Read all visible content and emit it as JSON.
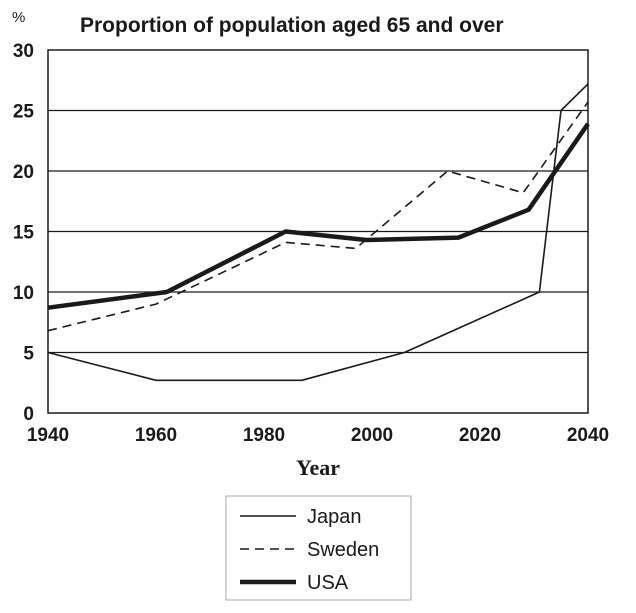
{
  "chart_data": {
    "type": "line",
    "title": "Proportion of population aged 65 and over",
    "ylabel": "%",
    "xlabel": "Year",
    "xlim": [
      1940,
      2040
    ],
    "ylim": [
      0,
      30
    ],
    "x_ticks": [
      "1940",
      "1960",
      "1980",
      "2000",
      "2020",
      "2040"
    ],
    "y_ticks": [
      "0",
      "5",
      "10",
      "15",
      "20",
      "25",
      "30"
    ],
    "grid": "horizontal",
    "legend_position": "bottom-center",
    "series": [
      {
        "name": "Japan",
        "style": "thin-solid",
        "color": "#1a1a1a",
        "points": [
          {
            "x": 1940,
            "y": 5
          },
          {
            "x": 1960,
            "y": 2.7
          },
          {
            "x": 1987,
            "y": 2.7
          },
          {
            "x": 2006,
            "y": 5
          },
          {
            "x": 2031,
            "y": 10
          },
          {
            "x": 2035,
            "y": 25
          },
          {
            "x": 2040,
            "y": 27.2
          }
        ]
      },
      {
        "name": "Sweden",
        "style": "dashed",
        "color": "#1a1a1a",
        "points": [
          {
            "x": 1940,
            "y": 6.8
          },
          {
            "x": 1960,
            "y": 9
          },
          {
            "x": 1984,
            "y": 14.1
          },
          {
            "x": 1997,
            "y": 13.6
          },
          {
            "x": 2014,
            "y": 20
          },
          {
            "x": 2028,
            "y": 18.2
          },
          {
            "x": 2040,
            "y": 25.7
          }
        ]
      },
      {
        "name": "USA",
        "style": "thick-solid",
        "color": "#1a1a1a",
        "points": [
          {
            "x": 1940,
            "y": 8.7
          },
          {
            "x": 1962,
            "y": 10
          },
          {
            "x": 1984,
            "y": 15
          },
          {
            "x": 1999,
            "y": 14.3
          },
          {
            "x": 2016,
            "y": 14.5
          },
          {
            "x": 2029,
            "y": 16.8
          },
          {
            "x": 2040,
            "y": 23.9
          }
        ]
      }
    ]
  }
}
